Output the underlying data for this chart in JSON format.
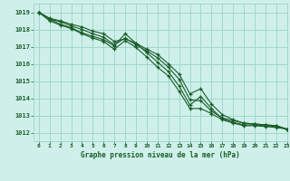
{
  "bg_color": "#cff0ea",
  "grid_color": "#a0d8cc",
  "line_color": "#1a5c28",
  "title": "Graphe pression niveau de la mer (hPa)",
  "xlim": [
    -0.5,
    23
  ],
  "ylim": [
    1011.5,
    1019.5
  ],
  "yticks": [
    1012,
    1013,
    1014,
    1015,
    1016,
    1017,
    1018,
    1019
  ],
  "xticks": [
    0,
    1,
    2,
    3,
    4,
    5,
    6,
    7,
    8,
    9,
    10,
    11,
    12,
    13,
    14,
    15,
    16,
    17,
    18,
    19,
    20,
    21,
    22,
    23
  ],
  "series": [
    [
      1019.0,
      1018.65,
      1018.5,
      1018.3,
      1018.15,
      1017.9,
      1017.75,
      1017.3,
      1017.45,
      1017.2,
      1016.85,
      1016.55,
      1016.0,
      1015.4,
      1014.25,
      1014.55,
      1013.65,
      1013.05,
      1012.75,
      1012.55,
      1012.5,
      1012.45,
      1012.4,
      1012.2
    ],
    [
      1019.0,
      1018.6,
      1018.45,
      1018.2,
      1018.0,
      1017.75,
      1017.55,
      1017.1,
      1017.5,
      1017.1,
      1016.75,
      1016.35,
      1015.8,
      1015.1,
      1013.9,
      1013.85,
      1013.25,
      1012.85,
      1012.7,
      1012.55,
      1012.5,
      1012.45,
      1012.4,
      1012.2
    ],
    [
      1019.0,
      1018.6,
      1018.3,
      1018.1,
      1017.8,
      1017.6,
      1017.4,
      1017.05,
      1017.75,
      1017.2,
      1016.65,
      1016.1,
      1015.55,
      1014.7,
      1013.6,
      1014.1,
      1013.4,
      1012.8,
      1012.6,
      1012.45,
      1012.45,
      1012.4,
      1012.35,
      1012.2
    ],
    [
      1019.0,
      1018.5,
      1018.25,
      1018.05,
      1017.75,
      1017.5,
      1017.3,
      1016.85,
      1017.35,
      1016.95,
      1016.4,
      1015.8,
      1015.3,
      1014.4,
      1013.4,
      1013.4,
      1013.1,
      1012.75,
      1012.55,
      1012.4,
      1012.4,
      1012.35,
      1012.3,
      1012.2
    ]
  ]
}
